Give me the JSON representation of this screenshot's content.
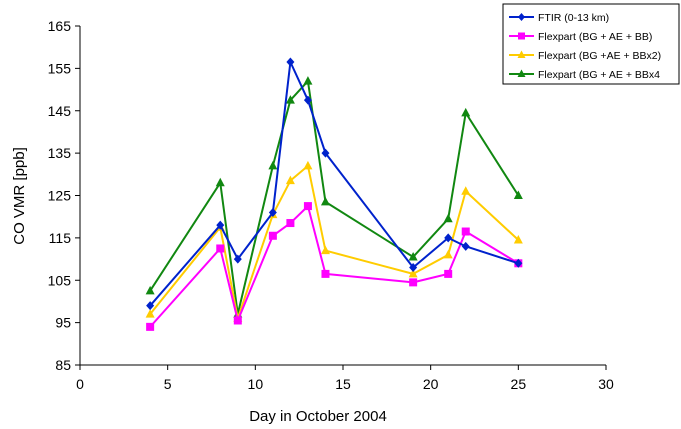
{
  "chart_data": {
    "type": "line",
    "title": "",
    "xlabel": "Day in October 2004",
    "ylabel": "CO VMR [ppb]",
    "xlim": [
      0,
      30
    ],
    "ylim": [
      85,
      165
    ],
    "xticks": [
      0,
      5,
      10,
      15,
      20,
      25,
      30
    ],
    "yticks": [
      85,
      95,
      105,
      115,
      125,
      135,
      145,
      155,
      165
    ],
    "grid": false,
    "legend_position": "top-right",
    "series": [
      {
        "name": "FTIR (0-13 km)",
        "color": "#0022cc",
        "marker": "diamond",
        "x": [
          4,
          8,
          9,
          11,
          12,
          13,
          14,
          19,
          21,
          22,
          25
        ],
        "y": [
          99,
          118,
          110,
          121,
          156.5,
          147.5,
          135,
          108,
          115,
          113,
          109
        ]
      },
      {
        "name": "Flexpart (BG + AE + BB)",
        "color": "#ff00ff",
        "marker": "square",
        "x": [
          4,
          8,
          9,
          11,
          12,
          13,
          14,
          19,
          21,
          22,
          25
        ],
        "y": [
          94,
          112.5,
          95.5,
          115.5,
          118.5,
          122.5,
          106.5,
          104.5,
          106.5,
          116.5,
          109
        ]
      },
      {
        "name": "Flexpart (BG +AE + BBx2)",
        "color": "#ffcc00",
        "marker": "triangle",
        "x": [
          4,
          8,
          9,
          11,
          12,
          13,
          14,
          19,
          21,
          22,
          25
        ],
        "y": [
          97,
          117.5,
          96,
          120.5,
          128.5,
          132,
          112,
          106.5,
          111,
          126,
          114.5
        ]
      },
      {
        "name": "Flexpart (BG + AE + BBx4",
        "color": "#118811",
        "marker": "triangle",
        "x": [
          4,
          8,
          9,
          11,
          12,
          13,
          14,
          19,
          21,
          22,
          25
        ],
        "y": [
          102.5,
          128,
          97,
          132,
          147.5,
          152,
          123.5,
          110.5,
          119.5,
          144.5,
          125
        ]
      }
    ]
  }
}
